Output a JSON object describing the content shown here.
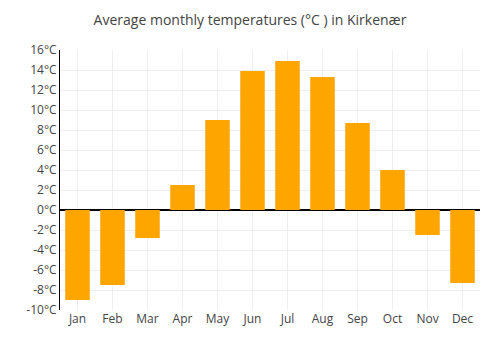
{
  "chart_data": {
    "type": "bar",
    "title": "Average monthly temperatures (°C ) in Kirkenær",
    "categories": [
      "Jan",
      "Feb",
      "Mar",
      "Apr",
      "May",
      "Jun",
      "Jul",
      "Aug",
      "Sep",
      "Oct",
      "Nov",
      "Dec"
    ],
    "values": [
      -9.0,
      -7.5,
      -2.8,
      2.5,
      9.0,
      13.9,
      14.9,
      13.3,
      8.7,
      4.0,
      -2.5,
      -7.3
    ],
    "color": "#FFA500",
    "ylim": [
      -10,
      16
    ],
    "yticks": [
      {
        "value": -10,
        "label": "-10°C"
      },
      {
        "value": -8,
        "label": "-8°C"
      },
      {
        "value": -6,
        "label": "-6°C"
      },
      {
        "value": -4,
        "label": "-4°C"
      },
      {
        "value": -2,
        "label": "-2°C"
      },
      {
        "value": 0,
        "label": "0°C"
      },
      {
        "value": 2,
        "label": "2°C"
      },
      {
        "value": 4,
        "label": "4°C"
      },
      {
        "value": 6,
        "label": "6°C"
      },
      {
        "value": 8,
        "label": "8°C"
      },
      {
        "value": 10,
        "label": "10°C"
      },
      {
        "value": 12,
        "label": "12°C"
      },
      {
        "value": 14,
        "label": "14°C"
      },
      {
        "value": 16,
        "label": "16°C"
      }
    ],
    "grid": true
  }
}
